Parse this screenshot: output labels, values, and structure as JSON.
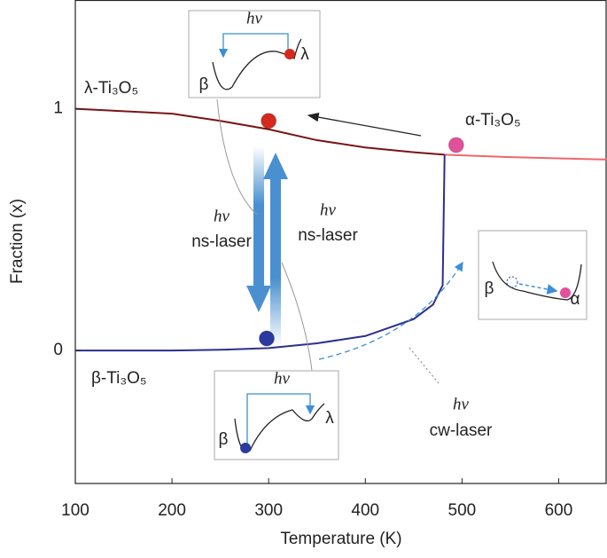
{
  "chart_data": {
    "type": "line",
    "x_label": "Temperature (K)",
    "y_label": "Fraction (x)",
    "xlim": [
      100,
      650
    ],
    "ylim": [
      -0.55,
      1.45
    ],
    "xticks": [
      100,
      200,
      300,
      400,
      500,
      600
    ],
    "yticks": [
      0,
      1
    ],
    "series": [
      {
        "name": "λ-Ti₃O₅",
        "color": "#7a1416",
        "x": [
          100,
          200,
          250,
          300,
          350,
          400,
          450,
          482
        ],
        "values": [
          1,
          0.98,
          0.95,
          0.915,
          0.87,
          0.84,
          0.82,
          0.81
        ]
      },
      {
        "name": "α-Ti₃O₅",
        "color": "#f0666a",
        "x": [
          482,
          550,
          650
        ],
        "values": [
          0.81,
          0.8,
          0.79
        ]
      },
      {
        "name": "β-Ti₃O₅",
        "color": "#2b2f8f",
        "x": [
          100,
          200,
          250,
          300,
          350,
          400,
          450,
          470,
          480,
          482
        ],
        "values": [
          0,
          0,
          0.003,
          0.01,
          0.03,
          0.06,
          0.13,
          0.19,
          0.27,
          0.81
        ]
      }
    ],
    "points": [
      {
        "x": 300,
        "y": 0.95,
        "color": "#d42a1e"
      },
      {
        "x": 494,
        "y": 0.85,
        "color": "#e3509a"
      },
      {
        "x": 298,
        "y": 0.05,
        "color": "#2a3aa0"
      }
    ],
    "annotations": [
      "hν",
      "ns-laser",
      "hν",
      "ns-laser",
      "hν",
      "cw-laser"
    ],
    "insets": [
      {
        "labels": [
          "hν",
          "β",
          "λ"
        ]
      },
      {
        "labels": [
          "β",
          "α"
        ]
      },
      {
        "labels": [
          "hν",
          "β",
          "λ"
        ]
      }
    ]
  }
}
